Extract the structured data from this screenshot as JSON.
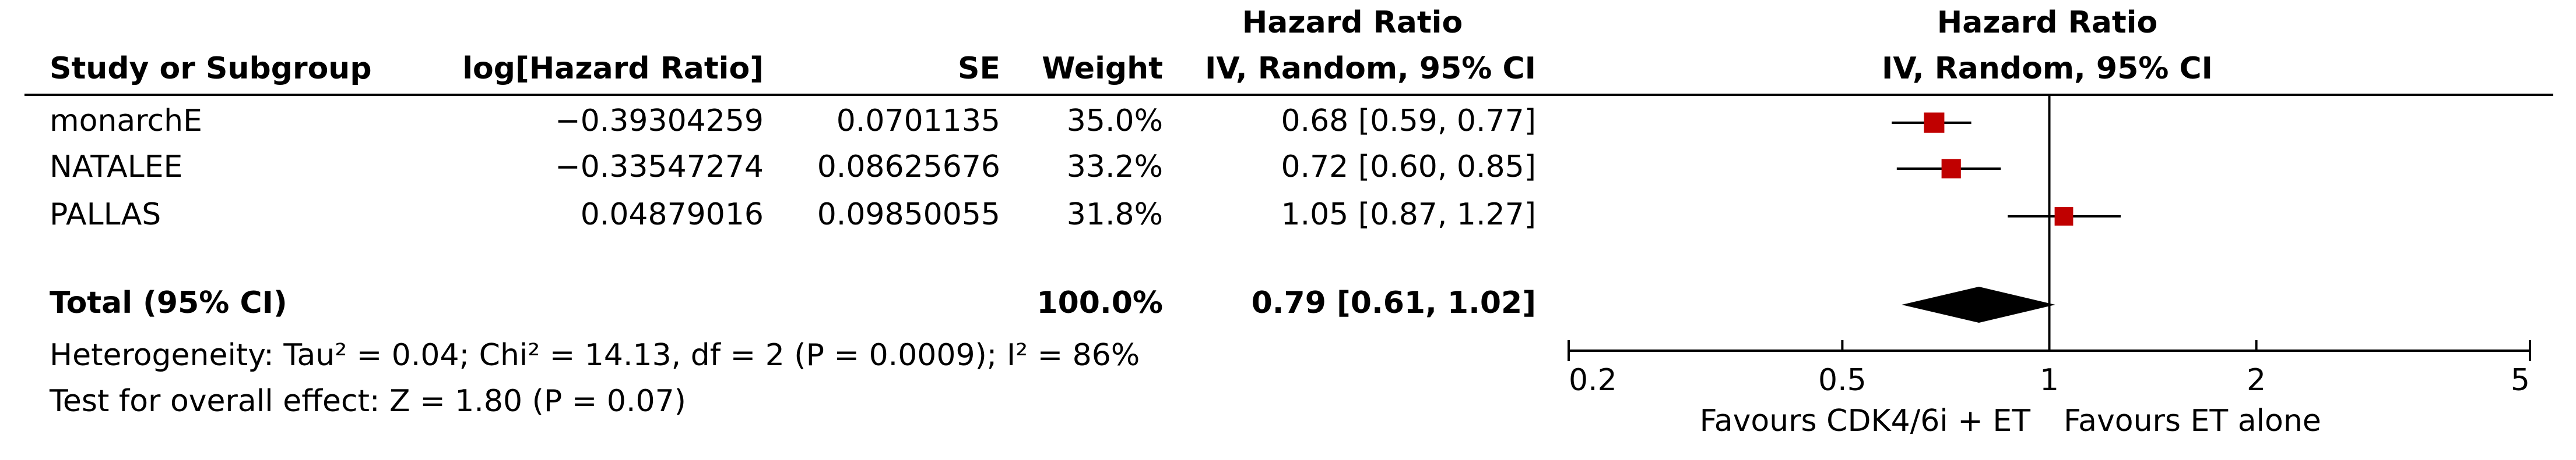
{
  "chart_data": {
    "type": "forest",
    "header_group": "Hazard Ratio",
    "columns": [
      "Study or Subgroup",
      "log[Hazard Ratio]",
      "SE",
      "Weight",
      "IV, Random, 95% CI"
    ],
    "plot_title": "Hazard Ratio",
    "plot_subtitle": "IV, Random, 95% CI",
    "categories": [
      "monarchE",
      "NATALEE",
      "PALLAS"
    ],
    "log_hr": [
      "−0.39304259",
      "−0.33547274",
      "0.04879016"
    ],
    "se": [
      0.0701135,
      0.08625676,
      0.09850055
    ],
    "weights": [
      35.0,
      33.2,
      31.8
    ],
    "weight_labels": [
      "35.0%",
      "33.2%",
      "31.8%"
    ],
    "values": [
      0.68,
      0.72,
      1.05
    ],
    "ci_lower": [
      0.59,
      0.6,
      0.87
    ],
    "ci_upper": [
      0.77,
      0.85,
      1.27
    ],
    "value_labels": [
      "0.68 [0.59, 0.77]",
      "0.72 [0.60, 0.85]",
      "1.05 [0.87, 1.27]"
    ],
    "color": "#c00000",
    "total": {
      "label": "Total (95% CI)",
      "weight_label": "100.0%",
      "value": 0.79,
      "ci_lower": 0.61,
      "ci_upper": 1.02,
      "value_label": "0.79 [0.61, 1.02]",
      "color": "#000000"
    },
    "heterogeneity": "Heterogeneity: Tau² = 0.04; Chi² = 14.13, df = 2 (P = 0.0009); I² = 86%",
    "overall_effect": "Test for overall effect: Z = 1.80 (P = 0.07)",
    "xscale": "log",
    "xlim": [
      0.2,
      5
    ],
    "xticks": [
      0.2,
      0.5,
      1,
      2,
      5
    ],
    "reference_line": 1,
    "favours_left": "Favours CDK4/6i + ET",
    "favours_right": "Favours ET alone"
  }
}
